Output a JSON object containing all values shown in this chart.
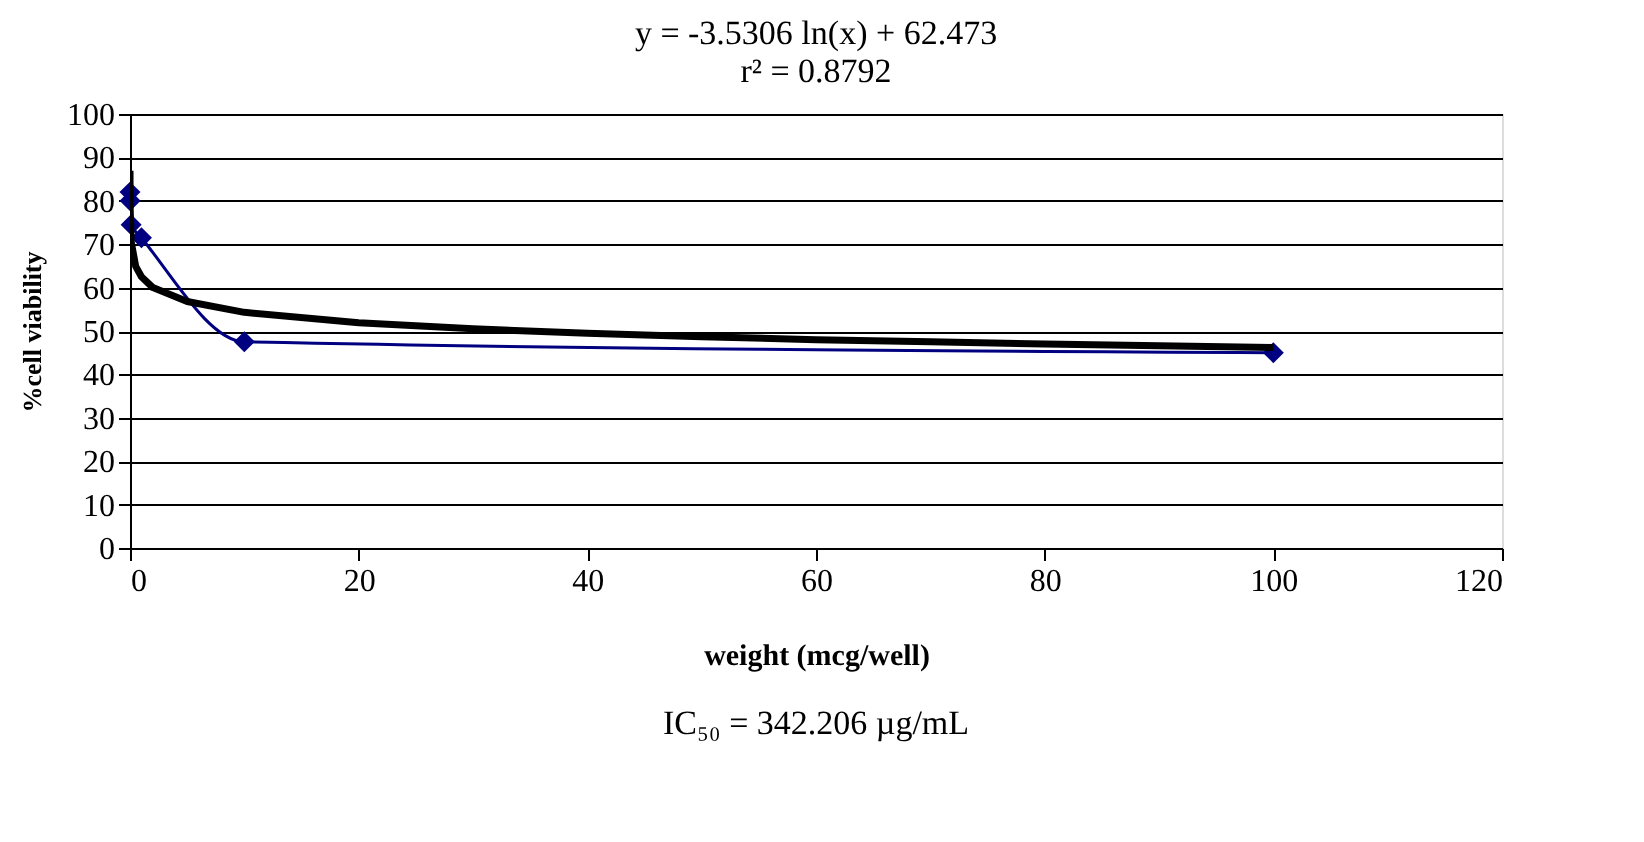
{
  "chart_data": {
    "type": "line",
    "title": [
      "y = -3.5306 ln(x) + 62.473",
      "r² = 0.8792"
    ],
    "xlabel": "weight (mcg/well)",
    "ylabel": "%cell viability",
    "annotations": [
      "IC₅₀ = 342.206 µg/mL"
    ],
    "xlim": [
      0,
      120
    ],
    "xticks": [
      0,
      20,
      40,
      60,
      80,
      100,
      120
    ],
    "ylim": [
      0,
      100
    ],
    "yticks": [
      0,
      10,
      20,
      30,
      40,
      50,
      60,
      70,
      80,
      90,
      100
    ],
    "grid": "y",
    "line_style": "solid",
    "series": [
      {
        "color": "#000080",
        "marker": "diamond",
        "x": [
          0.001,
          0.01,
          0.1,
          1,
          10,
          100
        ],
        "values": [
          82,
          80,
          74.5,
          71.5,
          47.5,
          45
        ]
      },
      {
        "color": "#000000",
        "marker": "none",
        "x": [
          0.001,
          0.01,
          0.1,
          0.5,
          1,
          2,
          5,
          10,
          20,
          30,
          40,
          50,
          60,
          70,
          80,
          90,
          100
        ],
        "values": [
          86.9,
          78.7,
          70.6,
          64.9,
          62.5,
          60.0,
          56.8,
          54.3,
          51.9,
          50.5,
          49.5,
          48.7,
          48.0,
          47.5,
          47.0,
          46.6,
          46.2
        ]
      }
    ]
  }
}
